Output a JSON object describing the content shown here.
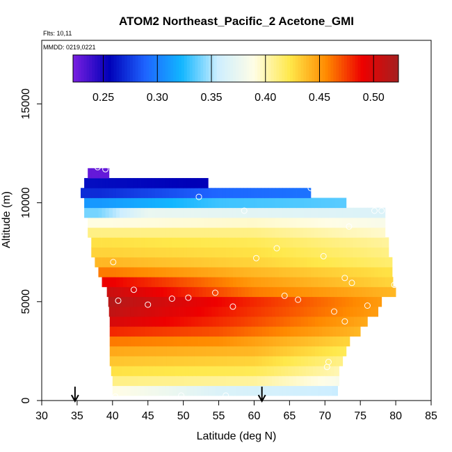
{
  "chart_data": {
    "type": "heatmap",
    "title": "ATOM2 Northeast_Pacific_2 Acetone_GMI",
    "flights_label": "Flts: 10,11",
    "mmdd_label": "MMDD: 0219,0221",
    "xlabel": "Latitude (deg N)",
    "ylabel": "Altitude (m)",
    "xlim": [
      30,
      85
    ],
    "ylim": [
      0,
      17500
    ],
    "x_ticks": [
      30,
      35,
      40,
      45,
      50,
      55,
      60,
      65,
      70,
      75,
      80,
      85
    ],
    "y_ticks": [
      0,
      5000,
      10000,
      15000
    ],
    "colorbar": {
      "range": [
        0.222,
        0.523
      ],
      "ticks": [
        0.25,
        0.3,
        0.35,
        0.4,
        0.45,
        0.5
      ],
      "tick_labels": [
        "0.25",
        "0.30",
        "0.35",
        "0.40",
        "0.45",
        "0.50"
      ],
      "colors": [
        "#7a1fe0",
        "#0000b8",
        "#1e64ff",
        "#12b6ff",
        "#cdeeff",
        "#fffde6",
        "#ffe84a",
        "#ff8a00",
        "#ee0000",
        "#a52020"
      ]
    },
    "rows": [
      {
        "alt": 500,
        "lat_start": 40.0,
        "lat_end": 71.8,
        "knots": [
          [
            40,
            0.39
          ],
          [
            55,
            0.365
          ],
          [
            72,
            0.355
          ]
        ]
      },
      {
        "alt": 1000,
        "lat_start": 40.0,
        "lat_end": 72.0,
        "knots": [
          [
            40,
            0.41
          ],
          [
            60,
            0.405
          ],
          [
            72,
            0.385
          ]
        ]
      },
      {
        "alt": 1500,
        "lat_start": 39.8,
        "lat_end": 72.0,
        "knots": [
          [
            40,
            0.425
          ],
          [
            60,
            0.42
          ],
          [
            72,
            0.4
          ]
        ]
      },
      {
        "alt": 2000,
        "lat_start": 39.6,
        "lat_end": 72.5,
        "knots": [
          [
            40,
            0.435
          ],
          [
            60,
            0.43
          ],
          [
            72,
            0.41
          ]
        ]
      },
      {
        "alt": 2500,
        "lat_start": 39.6,
        "lat_end": 73.0,
        "knots": [
          [
            40,
            0.445
          ],
          [
            60,
            0.44
          ],
          [
            73,
            0.42
          ]
        ]
      },
      {
        "alt": 3000,
        "lat_start": 39.6,
        "lat_end": 73.5,
        "knots": [
          [
            40,
            0.46
          ],
          [
            55,
            0.455
          ],
          [
            73,
            0.43
          ]
        ]
      },
      {
        "alt": 3500,
        "lat_start": 39.6,
        "lat_end": 75.0,
        "knots": [
          [
            40,
            0.48
          ],
          [
            55,
            0.47
          ],
          [
            75,
            0.44
          ]
        ]
      },
      {
        "alt": 4000,
        "lat_start": 39.6,
        "lat_end": 76.0,
        "knots": [
          [
            40,
            0.5
          ],
          [
            58,
            0.475
          ],
          [
            76,
            0.445
          ]
        ]
      },
      {
        "alt": 4500,
        "lat_start": 39.5,
        "lat_end": 77.5,
        "knots": [
          [
            40,
            0.51
          ],
          [
            58,
            0.48
          ],
          [
            77,
            0.45
          ]
        ]
      },
      {
        "alt": 5000,
        "lat_start": 39.4,
        "lat_end": 78.0,
        "knots": [
          [
            40,
            0.515
          ],
          [
            60,
            0.48
          ],
          [
            78,
            0.45
          ]
        ]
      },
      {
        "alt": 5500,
        "lat_start": 39.2,
        "lat_end": 80.0,
        "knots": [
          [
            40,
            0.505
          ],
          [
            60,
            0.46
          ],
          [
            80,
            0.44
          ]
        ]
      },
      {
        "alt": 6000,
        "lat_start": 38.5,
        "lat_end": 79.6,
        "knots": [
          [
            40,
            0.49
          ],
          [
            60,
            0.45
          ],
          [
            79,
            0.43
          ]
        ]
      },
      {
        "alt": 6500,
        "lat_start": 38.0,
        "lat_end": 79.5,
        "knots": [
          [
            40,
            0.46
          ],
          [
            60,
            0.44
          ],
          [
            79,
            0.425
          ]
        ]
      },
      {
        "alt": 7000,
        "lat_start": 37.5,
        "lat_end": 79.5,
        "knots": [
          [
            40,
            0.44
          ],
          [
            60,
            0.43
          ],
          [
            79,
            0.415
          ]
        ]
      },
      {
        "alt": 7500,
        "lat_start": 37.0,
        "lat_end": 79.0,
        "knots": [
          [
            40,
            0.43
          ],
          [
            60,
            0.425
          ],
          [
            79,
            0.41
          ]
        ]
      },
      {
        "alt": 8000,
        "lat_start": 37.0,
        "lat_end": 79.0,
        "knots": [
          [
            40,
            0.425
          ],
          [
            60,
            0.42
          ],
          [
            79,
            0.405
          ]
        ]
      },
      {
        "alt": 8500,
        "lat_start": 36.5,
        "lat_end": 78.5,
        "knots": [
          [
            40,
            0.41
          ],
          [
            60,
            0.41
          ],
          [
            78,
            0.395
          ]
        ]
      },
      {
        "alt": 9000,
        "lat_start": 36.5,
        "lat_end": 78.5,
        "knots": [
          [
            40,
            0.39
          ],
          [
            60,
            0.395
          ],
          [
            78,
            0.385
          ]
        ]
      },
      {
        "alt": 9500,
        "lat_start": 36.0,
        "lat_end": 78.5,
        "knots": [
          [
            38,
            0.34
          ],
          [
            45,
            0.375
          ],
          [
            60,
            0.37
          ],
          [
            78,
            0.365
          ]
        ]
      },
      {
        "alt": 10000,
        "lat_start": 36.0,
        "lat_end": 73.0,
        "knots": [
          [
            38,
            0.31
          ],
          [
            55,
            0.33
          ],
          [
            73,
            0.335
          ]
        ]
      },
      {
        "alt": 10500,
        "lat_start": 35.5,
        "lat_end": 68.0,
        "knots": [
          [
            38,
            0.27
          ],
          [
            55,
            0.29
          ],
          [
            68,
            0.295
          ]
        ]
      },
      {
        "alt": 11000,
        "lat_start": 36.0,
        "lat_end": 53.5,
        "knots": [
          [
            36,
            0.26
          ],
          [
            53,
            0.255
          ]
        ]
      },
      {
        "alt": 11500,
        "lat_start": 36.5,
        "lat_end": 39.5,
        "knots": [
          [
            36,
            0.228
          ],
          [
            39.5,
            0.228
          ]
        ]
      }
    ],
    "row_height_m": 500,
    "points": [
      [
        35.2,
        10900
      ],
      [
        37.9,
        11800
      ],
      [
        39.0,
        11700
      ],
      [
        52.2,
        10300
      ],
      [
        68.0,
        10750
      ],
      [
        73.8,
        10000
      ],
      [
        77.0,
        9600
      ],
      [
        78.0,
        9600
      ],
      [
        58.6,
        9600
      ],
      [
        73.4,
        8800
      ],
      [
        63.2,
        7700
      ],
      [
        69.8,
        7300
      ],
      [
        60.3,
        7200
      ],
      [
        40.1,
        7000
      ],
      [
        72.8,
        6200
      ],
      [
        73.8,
        5950
      ],
      [
        79.8,
        5850
      ],
      [
        43.0,
        5600
      ],
      [
        54.5,
        5450
      ],
      [
        64.3,
        5300
      ],
      [
        66.2,
        5100
      ],
      [
        50.7,
        5200
      ],
      [
        48.4,
        5150
      ],
      [
        40.8,
        5050
      ],
      [
        45.0,
        4850
      ],
      [
        57.0,
        4750
      ],
      [
        76.0,
        4800
      ],
      [
        71.3,
        4500
      ],
      [
        72.8,
        4000
      ],
      [
        70.5,
        1950
      ],
      [
        70.3,
        1700
      ],
      [
        40.4,
        200
      ],
      [
        49.7,
        250
      ],
      [
        56.0,
        250
      ]
    ],
    "arrows": [
      34.7,
      61.1
    ]
  }
}
